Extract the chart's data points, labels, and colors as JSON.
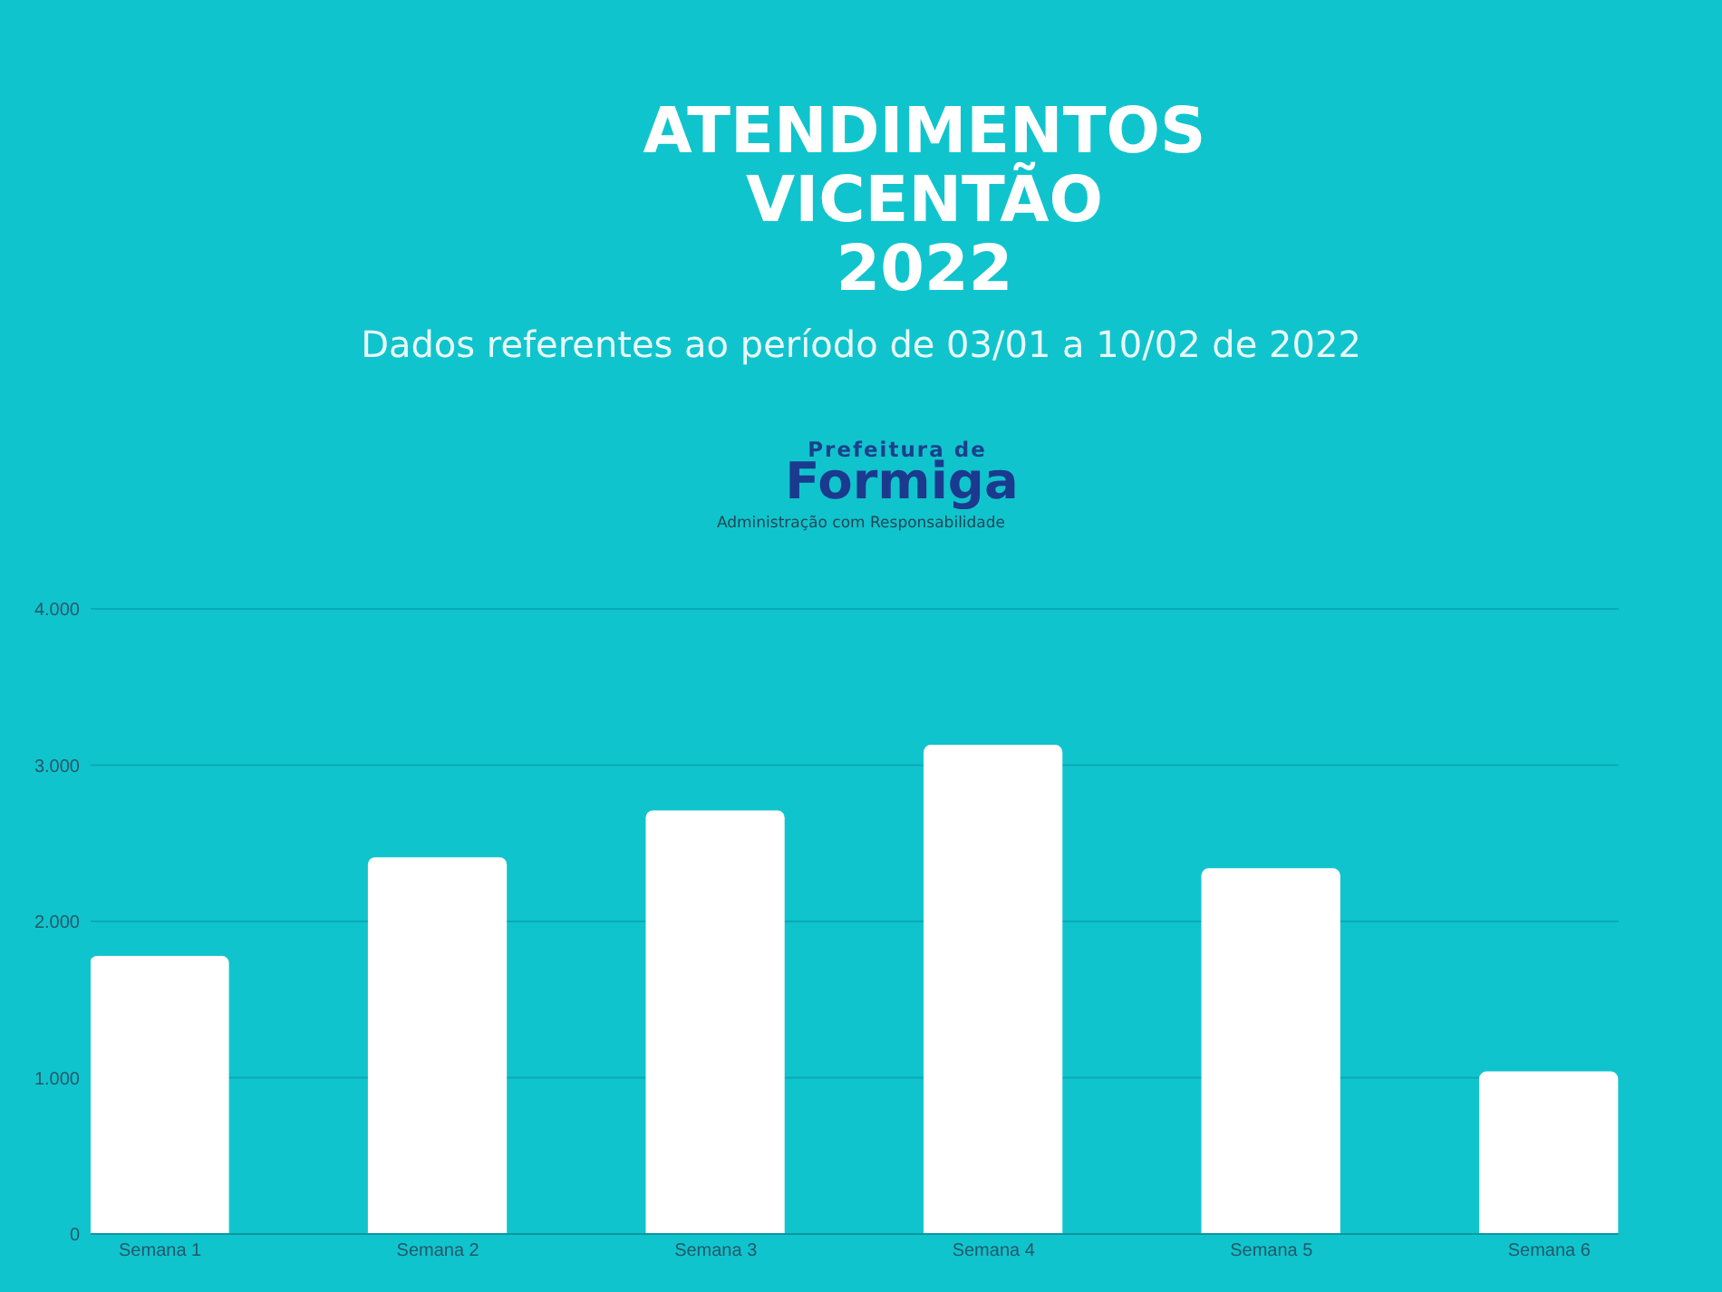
{
  "chart_data": {
    "type": "bar",
    "title": "ATENDIMENTOS\nVICENTÃO\n2022",
    "subtitle": "Dados referentes ao período de 03/01 a 10/02 de 2022",
    "annotations": [
      "Prefeitura de",
      "Formiga",
      "Administração com Responsabilidade"
    ],
    "categories": [
      "Semana 1",
      "Semana 2",
      "Semana 3",
      "Semana 4",
      "Semana 5",
      "Semana 6"
    ],
    "values": [
      1780,
      2410,
      2710,
      3130,
      2340,
      1040
    ],
    "color": "#ffffff",
    "ylim": [
      0,
      4000
    ],
    "yticks": [
      0,
      {
        "value": 1000,
        "label": "1.000"
      },
      {
        "value": 2000,
        "label": "2.000"
      },
      {
        "value": 3000,
        "label": "3.000"
      },
      {
        "value": 4000,
        "label": "4.000"
      }
    ],
    "grid": "y"
  }
}
